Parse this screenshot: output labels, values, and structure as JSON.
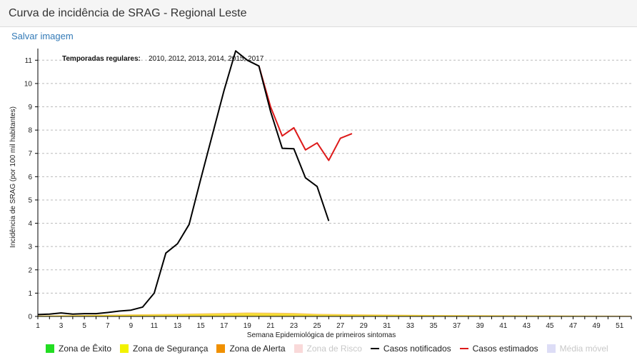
{
  "header": {
    "title": "Curva de incidência de SRAG - Regional Leste"
  },
  "toolbar": {
    "save_label": "Salvar imagem"
  },
  "annotation": {
    "label": "Temporadas regulares:",
    "value": "2010, 2012, 2013, 2014, 2015, 2017"
  },
  "legend": {
    "items": [
      {
        "label": "Zona de Êxito",
        "color": "#22dd22",
        "kind": "swatch",
        "active": true
      },
      {
        "label": "Zona de Segurança",
        "color": "#f2f200",
        "kind": "swatch",
        "active": true
      },
      {
        "label": "Zona de Alerta",
        "color": "#f09000",
        "kind": "swatch",
        "active": true
      },
      {
        "label": "Zona de Risco",
        "color": "#f8d0d0",
        "kind": "swatch",
        "active": false
      },
      {
        "label": "Casos notificados",
        "color": "#000000",
        "kind": "line",
        "active": true
      },
      {
        "label": "Casos estimados",
        "color": "#dd1a1a",
        "kind": "line",
        "active": true
      },
      {
        "label": "Média móvel",
        "color": "#d4d4f4",
        "kind": "swatch",
        "active": false
      }
    ]
  },
  "chart_data": {
    "type": "line",
    "title": "",
    "xlabel": "Semana Epidemiológica de primeiros sintomas",
    "ylabel": "Incidência de SRAG (por 100 mil habitantes)",
    "xlim": [
      1,
      52
    ],
    "ylim": [
      0,
      11.5
    ],
    "x_ticks": [
      1,
      3,
      5,
      7,
      9,
      11,
      13,
      15,
      17,
      19,
      21,
      23,
      25,
      27,
      29,
      31,
      33,
      35,
      37,
      39,
      41,
      43,
      45,
      47,
      49,
      51
    ],
    "y_ticks": [
      0,
      1,
      2,
      3,
      4,
      5,
      6,
      7,
      8,
      9,
      10,
      11
    ],
    "grid": "horizontal dashed",
    "legend_position": "bottom",
    "series": [
      {
        "name": "Casos notificados",
        "color": "#000000",
        "x": [
          1,
          2,
          3,
          4,
          5,
          6,
          7,
          8,
          9,
          10,
          11,
          12,
          13,
          14,
          15,
          16,
          17,
          18,
          19,
          20,
          21,
          22,
          23,
          24,
          25,
          26
        ],
        "y": [
          0.08,
          0.1,
          0.15,
          0.1,
          0.12,
          0.12,
          0.17,
          0.23,
          0.27,
          0.4,
          1.0,
          2.72,
          3.12,
          3.95,
          5.9,
          7.8,
          9.7,
          11.4,
          11.0,
          10.75,
          8.8,
          7.22,
          7.2,
          5.95,
          5.58,
          4.1
        ]
      },
      {
        "name": "Casos estimados",
        "color": "#dd1a1a",
        "x": [
          20,
          21,
          22,
          23,
          24,
          25,
          26,
          27,
          28
        ],
        "y": [
          10.75,
          9.0,
          7.75,
          8.1,
          7.15,
          7.45,
          6.7,
          7.65,
          7.85
        ]
      },
      {
        "name": "Zona de Segurança",
        "color": "#f2f200",
        "x": [
          1,
          5,
          9,
          13,
          17,
          19,
          21,
          23,
          25,
          29,
          35,
          41,
          47,
          52
        ],
        "y": [
          0.03,
          0.05,
          0.07,
          0.09,
          0.12,
          0.14,
          0.13,
          0.12,
          0.09,
          0.07,
          0.05,
          0.04,
          0.03,
          0.02
        ]
      },
      {
        "name": "Zona de Alerta",
        "color": "#f09000",
        "x": [
          1,
          5,
          9,
          13,
          17,
          19,
          21,
          23,
          25,
          29,
          35,
          41,
          47,
          52
        ],
        "y": [
          0.04,
          0.06,
          0.09,
          0.11,
          0.15,
          0.17,
          0.16,
          0.15,
          0.11,
          0.09,
          0.06,
          0.05,
          0.04,
          0.03
        ]
      }
    ]
  }
}
